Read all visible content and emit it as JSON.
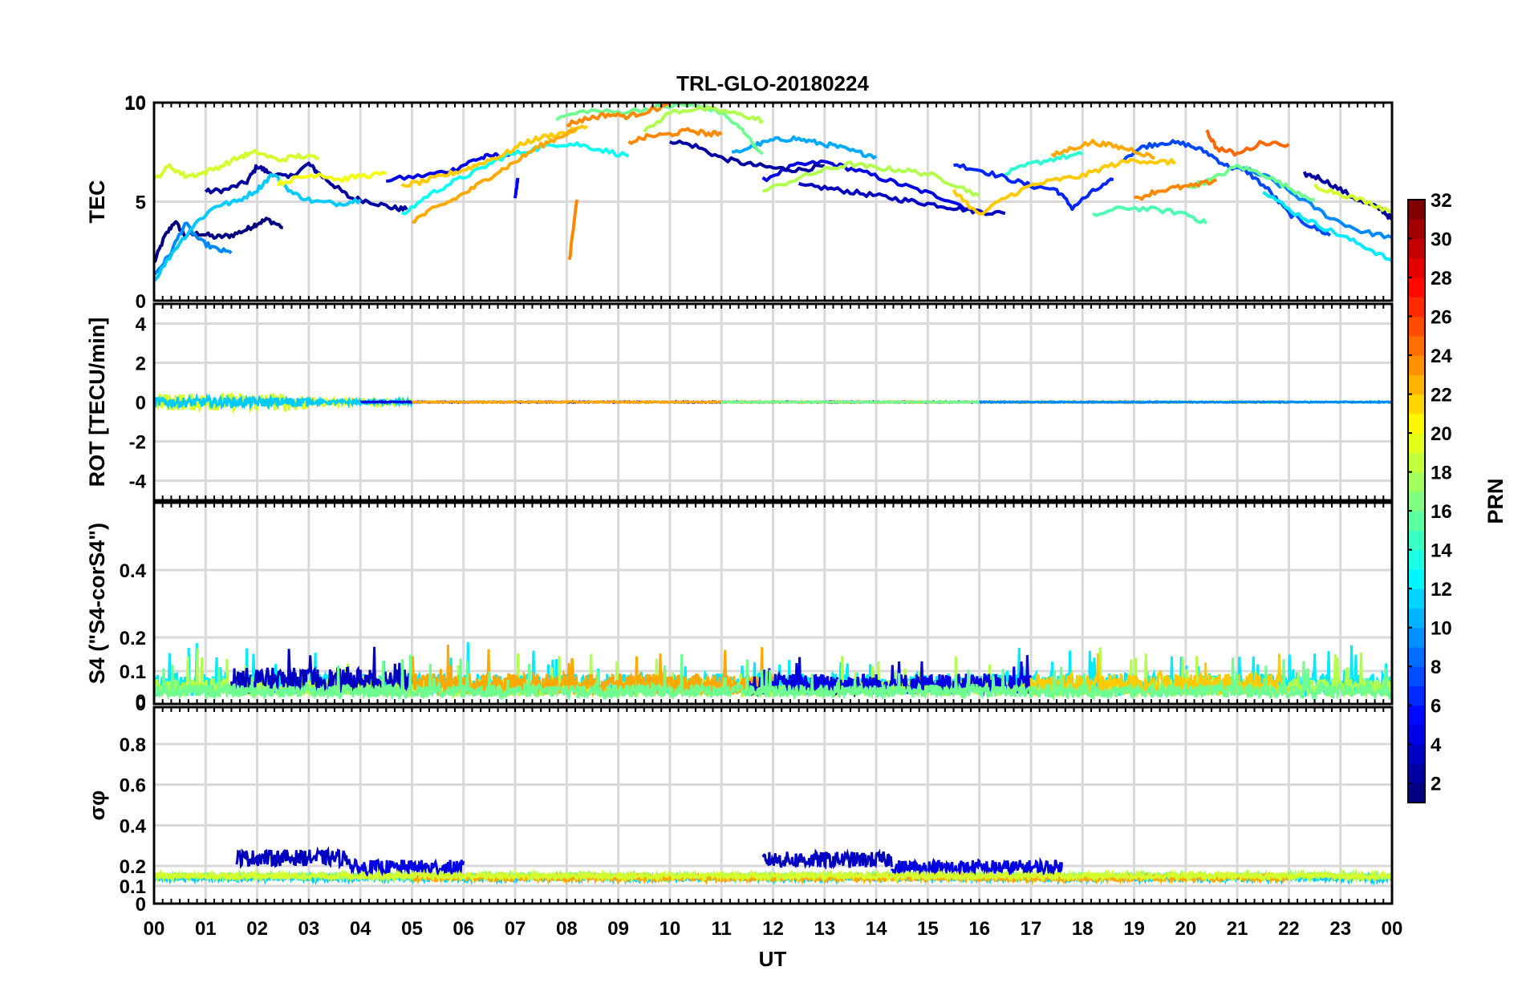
{
  "chart_data": {
    "type": "line",
    "title": "TRL-GLO-20180224",
    "xlabel": "UT",
    "x_ticks": [
      "00",
      "01",
      "02",
      "03",
      "04",
      "05",
      "06",
      "07",
      "08",
      "09",
      "10",
      "11",
      "12",
      "13",
      "14",
      "15",
      "16",
      "17",
      "18",
      "19",
      "20",
      "21",
      "22",
      "23",
      "00"
    ],
    "xlim": [
      0,
      24
    ],
    "colorbar": {
      "label": "PRN",
      "range": [
        1,
        32
      ],
      "ticks": [
        "2",
        "4",
        "6",
        "8",
        "10",
        "12",
        "14",
        "16",
        "18",
        "20",
        "22",
        "24",
        "26",
        "28",
        "30",
        "32"
      ]
    },
    "panels": [
      {
        "name": "tec",
        "ylabel": "TEC",
        "ylim": [
          0,
          10
        ],
        "y_ticks": [
          "0",
          "5",
          "10"
        ],
        "series": [
          {
            "prn": 1,
            "x": [
              0,
              0.2,
              0.4,
              0.6,
              0.9,
              1.2,
              1.5,
              1.8,
              2.0,
              2.2,
              2.5
            ],
            "y": [
              1.9,
              3.2,
              4.0,
              3.3,
              3.4,
              3.2,
              3.3,
              3.6,
              3.9,
              4.1,
              3.7
            ]
          },
          {
            "prn": 2,
            "x": [
              1.0,
              1.4,
              1.8,
              2.0,
              2.2,
              2.6,
              3.0,
              3.2,
              3.5,
              3.8,
              4.2,
              4.6,
              4.9
            ],
            "y": [
              5.5,
              5.6,
              6.0,
              6.8,
              6.5,
              6.2,
              6.9,
              6.4,
              5.8,
              5.2,
              5.0,
              4.7,
              4.6
            ]
          },
          {
            "prn": 4,
            "x": [
              4.5,
              5.2,
              5.8,
              6.2,
              6.5,
              7.0
            ],
            "y": [
              6.1,
              6.3,
              6.6,
              7.1,
              7.3,
              7.4
            ]
          },
          {
            "prn": 4,
            "x": [
              11.8,
              12.4,
              13.0,
              13.6,
              14.2,
              14.8,
              15.4,
              16.0
            ],
            "y": [
              6.1,
              6.8,
              7.0,
              6.6,
              6.1,
              5.6,
              5.1,
              4.4
            ]
          },
          {
            "prn": 2,
            "x": [
              10.0,
              10.5,
              11.0,
              11.5,
              12.0,
              12.5,
              13.0
            ],
            "y": [
              8.1,
              7.8,
              7.2,
              6.9,
              6.7,
              6.6,
              6.8
            ]
          },
          {
            "prn": 3,
            "x": [
              12.5,
              13.0,
              13.5,
              14.0,
              14.5,
              15.0,
              15.5,
              16.0,
              16.5
            ],
            "y": [
              5.8,
              5.7,
              5.5,
              5.3,
              5.1,
              4.9,
              4.7,
              4.5,
              4.4
            ]
          },
          {
            "prn": 6,
            "x": [
              15.5,
              16.0,
              16.5,
              17.0,
              17.5,
              17.8,
              18.2,
              18.6
            ],
            "y": [
              6.9,
              6.6,
              6.2,
              5.8,
              5.6,
              4.7,
              5.5,
              6.1
            ]
          },
          {
            "prn": 2,
            "x": [
              22.3,
              22.6,
              23.0,
              23.4,
              23.8,
              24.0
            ],
            "y": [
              6.4,
              6.2,
              5.6,
              5.0,
              4.6,
              4.1
            ]
          },
          {
            "prn": 5,
            "x": [
              7.0,
              7.05
            ],
            "y": [
              5.1,
              6.2
            ]
          },
          {
            "prn": 7,
            "x": [
              18.8,
              19.2,
              19.6,
              20.0,
              20.4,
              20.8,
              21.2,
              21.6,
              22.0,
              22.4,
              22.8
            ],
            "y": [
              7.2,
              7.8,
              8.0,
              7.9,
              7.5,
              6.8,
              6.5,
              5.6,
              4.4,
              3.8,
              3.3
            ]
          },
          {
            "prn": 9,
            "x": [
              0,
              0.3,
              0.6,
              0.9,
              1.2,
              1.5
            ],
            "y": [
              1.3,
              2.3,
              3.9,
              3.0,
              2.6,
              2.4
            ]
          },
          {
            "prn": 9,
            "x": [
              21.0,
              21.6,
              22.2,
              22.8,
              23.4,
              24.0
            ],
            "y": [
              6.8,
              6.2,
              5.2,
              4.2,
              3.5,
              3.2
            ]
          },
          {
            "prn": 10,
            "x": [
              11.2,
              11.6,
              12.0,
              12.4,
              12.8,
              13.2,
              13.6,
              14.0
            ],
            "y": [
              7.4,
              7.8,
              8.1,
              8.2,
              8.0,
              7.8,
              7.5,
              7.3
            ]
          },
          {
            "prn": 11,
            "x": [
              0,
              0.4,
              0.8,
              1.2,
              1.6,
              2.0,
              2.3,
              2.7,
              3.1,
              3.6,
              4.0
            ],
            "y": [
              1.0,
              2.6,
              3.9,
              4.8,
              5.0,
              5.6,
              6.4,
              5.4,
              5.0,
              4.9,
              5.1
            ]
          },
          {
            "prn": 12,
            "x": [
              21.5,
              22.0,
              22.5,
              23.0,
              23.5,
              24.0
            ],
            "y": [
              5.6,
              4.6,
              3.9,
              3.3,
              2.7,
              2.0
            ]
          },
          {
            "prn": 13,
            "x": [
              4.8,
              5.3,
              5.8,
              6.3,
              6.8,
              7.3,
              7.8,
              8.2,
              8.7,
              9.2
            ],
            "y": [
              4.3,
              5.3,
              6.0,
              6.6,
              7.3,
              7.6,
              7.9,
              7.9,
              7.6,
              7.3
            ]
          },
          {
            "prn": 14,
            "x": [
              16.5,
              17.0,
              17.5,
              18.0
            ],
            "y": [
              6.4,
              6.9,
              7.2,
              7.4
            ]
          },
          {
            "prn": 15,
            "x": [
              18.2,
              18.8,
              19.4,
              20.0,
              20.4
            ],
            "y": [
              4.3,
              4.7,
              4.6,
              4.4,
              3.9
            ]
          },
          {
            "prn": 16,
            "x": [
              7.8,
              8.4,
              9.0,
              9.6,
              10.2,
              10.6,
              11.0,
              11.4,
              11.8
            ],
            "y": [
              9.2,
              9.6,
              9.5,
              9.7,
              9.9,
              9.8,
              9.5,
              8.6,
              7.4
            ]
          },
          {
            "prn": 16,
            "x": [
              20.0,
              20.5,
              21.0,
              21.5,
              22.0,
              22.5
            ],
            "y": [
              5.7,
              6.1,
              6.8,
              6.4,
              5.7,
              5.1
            ]
          },
          {
            "prn": 18,
            "x": [
              9.5,
              10.0,
              10.5,
              11.0,
              11.5,
              11.8
            ],
            "y": [
              8.5,
              9.5,
              9.7,
              9.6,
              9.3,
              9.1
            ]
          },
          {
            "prn": 18,
            "x": [
              11.8,
              12.5,
              13.0,
              13.5,
              14.0,
              14.5,
              15.0,
              15.5,
              16.0
            ],
            "y": [
              5.5,
              6.2,
              6.6,
              6.9,
              6.7,
              6.6,
              6.4,
              5.9,
              5.3
            ]
          },
          {
            "prn": 19,
            "x": [
              0,
              0.3,
              0.6,
              0.9,
              1.3,
              1.7,
              2.0,
              2.4,
              2.8,
              3.2
            ],
            "y": [
              6.1,
              6.8,
              6.3,
              6.4,
              6.8,
              7.3,
              7.5,
              7.1,
              7.3,
              7.2
            ]
          },
          {
            "prn": 19,
            "x": [
              22.5,
              23.0,
              23.5,
              24.0
            ],
            "y": [
              5.8,
              5.4,
              5.0,
              4.5
            ]
          },
          {
            "prn": 20,
            "x": [
              2.4,
              2.8,
              3.2,
              3.6,
              4.0,
              4.5
            ],
            "y": [
              5.9,
              6.2,
              6.4,
              6.1,
              6.3,
              6.4
            ]
          },
          {
            "prn": 22,
            "x": [
              4.8,
              5.2,
              5.6,
              6.0,
              6.4,
              6.8,
              7.2,
              7.6,
              8.0,
              8.4
            ],
            "y": [
              5.8,
              6.0,
              6.3,
              6.6,
              7.0,
              7.4,
              8.0,
              8.3,
              8.5,
              8.8
            ]
          },
          {
            "prn": 22,
            "x": [
              15.5,
              16.0,
              16.5,
              17.0,
              17.5,
              18.0,
              18.5,
              19.0,
              19.5,
              19.8
            ],
            "y": [
              5.6,
              4.3,
              5.2,
              5.8,
              6.1,
              6.3,
              6.8,
              7.1,
              7.0,
              7.0
            ]
          },
          {
            "prn": 23,
            "x": [
              5.0,
              5.4,
              5.8,
              6.2,
              6.6,
              7.0,
              7.4,
              7.8,
              8.2
            ],
            "y": [
              4.0,
              4.6,
              5.1,
              5.7,
              6.4,
              7.0,
              7.7,
              8.2,
              8.7
            ]
          },
          {
            "prn": 23,
            "x": [
              17.4,
              17.8,
              18.2,
              18.6,
              19.0,
              19.4
            ],
            "y": [
              7.3,
              7.7,
              8.0,
              7.8,
              7.6,
              7.2
            ]
          },
          {
            "prn": 24,
            "x": [
              8.0,
              8.4,
              8.8,
              9.2,
              9.6,
              10.0
            ],
            "y": [
              8.9,
              9.2,
              9.4,
              9.3,
              9.6,
              9.9
            ]
          },
          {
            "prn": 24,
            "x": [
              8.05,
              8.2
            ],
            "y": [
              2.0,
              5.1
            ]
          },
          {
            "prn": 24,
            "x": [
              9.2,
              9.6,
              10.0,
              10.4,
              10.8,
              11.0
            ],
            "y": [
              8.0,
              8.3,
              8.4,
              8.6,
              8.4,
              8.5
            ]
          },
          {
            "prn": 25,
            "x": [
              20.4,
              20.6,
              21.0,
              21.5,
              22.0
            ],
            "y": [
              8.6,
              7.7,
              7.4,
              8.0,
              7.9
            ]
          },
          {
            "prn": 24,
            "x": [
              19.0,
              19.4,
              19.8,
              20.2,
              20.6
            ],
            "y": [
              5.1,
              5.5,
              5.7,
              5.8,
              6.1
            ]
          }
        ]
      },
      {
        "name": "rot",
        "ylabel": "ROT [TECU/min]",
        "ylim": [
          -5,
          5
        ],
        "y_ticks": [
          "-4",
          "-2",
          "0",
          "2",
          "4"
        ]
      },
      {
        "name": "s4",
        "ylabel": "S4 (\"S4-corS4\")",
        "ylim": [
          0,
          0.6
        ],
        "y_ticks": [
          "0",
          "0",
          "0.1",
          "0.2",
          "0.4"
        ]
      },
      {
        "name": "sigma-phi",
        "ylabel": "σφ",
        "ylim": [
          0,
          1
        ],
        "y_ticks": [
          "0",
          "0.1",
          "0.2",
          "0.4",
          "0.6",
          "0.8"
        ]
      }
    ]
  }
}
